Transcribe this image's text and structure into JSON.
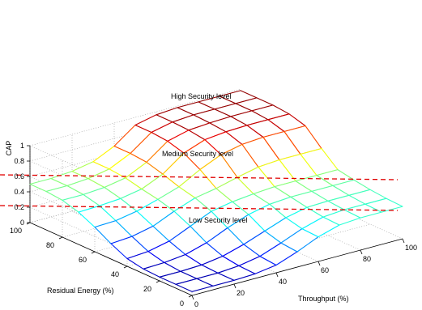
{
  "chart_data": {
    "type": "surface",
    "xlabel": "Throughput (%)",
    "ylabel": "Residual Energy (%)",
    "zlabel": "CAP",
    "x_ticks": [
      "0",
      "20",
      "40",
      "60",
      "80",
      "100"
    ],
    "y_ticks": [
      "0",
      "20",
      "40",
      "60",
      "80",
      "100"
    ],
    "z_ticks": [
      "0",
      "0.2",
      "0.4",
      "0.6",
      "0.8",
      "1"
    ],
    "xlim": [
      0,
      100
    ],
    "ylim": [
      0,
      100
    ],
    "zlim": [
      0,
      1
    ],
    "grid": true,
    "colormap": "jet",
    "x": [
      0,
      10,
      20,
      30,
      40,
      50,
      60,
      70,
      80,
      90,
      100
    ],
    "y": [
      0,
      10,
      20,
      30,
      40,
      50,
      60,
      70,
      80,
      90,
      100
    ],
    "z": [
      [
        0.05,
        0.05,
        0.05,
        0.06,
        0.1,
        0.2,
        0.32,
        0.4,
        0.42,
        0.42,
        0.42
      ],
      [
        0.05,
        0.05,
        0.05,
        0.07,
        0.12,
        0.22,
        0.33,
        0.41,
        0.43,
        0.43,
        0.43
      ],
      [
        0.05,
        0.05,
        0.06,
        0.1,
        0.18,
        0.28,
        0.38,
        0.44,
        0.45,
        0.45,
        0.45
      ],
      [
        0.06,
        0.07,
        0.1,
        0.18,
        0.3,
        0.4,
        0.46,
        0.48,
        0.48,
        0.48,
        0.48
      ],
      [
        0.1,
        0.12,
        0.18,
        0.3,
        0.42,
        0.47,
        0.5,
        0.52,
        0.52,
        0.52,
        0.52
      ],
      [
        0.2,
        0.22,
        0.28,
        0.4,
        0.5,
        0.55,
        0.62,
        0.68,
        0.7,
        0.7,
        0.7
      ],
      [
        0.32,
        0.33,
        0.38,
        0.46,
        0.55,
        0.7,
        0.82,
        0.88,
        0.9,
        0.9,
        0.9
      ],
      [
        0.42,
        0.43,
        0.45,
        0.5,
        0.62,
        0.82,
        0.92,
        0.95,
        0.96,
        0.96,
        0.96
      ],
      [
        0.48,
        0.48,
        0.5,
        0.55,
        0.68,
        0.88,
        0.95,
        0.97,
        0.98,
        0.98,
        0.98
      ],
      [
        0.5,
        0.5,
        0.52,
        0.57,
        0.7,
        0.9,
        0.96,
        0.98,
        0.98,
        0.98,
        0.98
      ],
      [
        0.5,
        0.5,
        0.52,
        0.57,
        0.7,
        0.9,
        0.96,
        0.98,
        0.98,
        0.98,
        0.98
      ]
    ],
    "thresholds": [
      {
        "z": 0.2,
        "color": "#e00000",
        "style": "dashed"
      },
      {
        "z": 0.6,
        "color": "#e00000",
        "style": "dashed"
      }
    ],
    "annotations": [
      "High Security level",
      "Medium Security level",
      "Low Security level"
    ]
  }
}
